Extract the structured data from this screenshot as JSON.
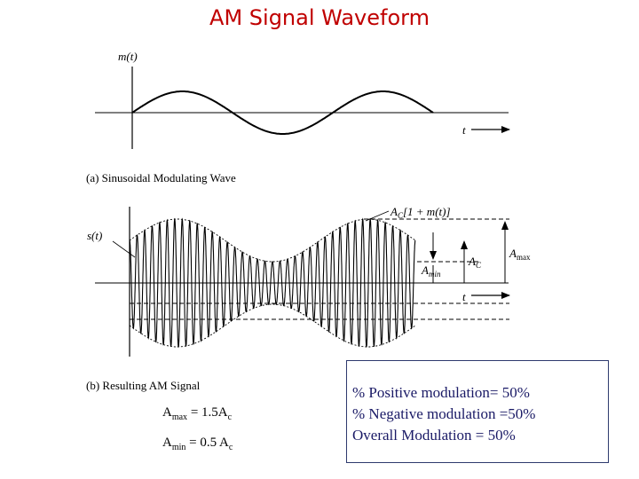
{
  "title": "AM Signal Waveform",
  "panel_a": {
    "ylabel": "m(t)",
    "xlabel": "t",
    "caption": "(a) Sinusoidal Modulating Wave"
  },
  "panel_b": {
    "ylabel": "s(t)",
    "xlabel": "t",
    "caption": "(b) Resulting AM Signal",
    "envelope_label": {
      "prefix": "A",
      "sub": "C",
      "rest": "[1 + m(t)]"
    },
    "ac_label": {
      "main": "A",
      "sub": "C"
    },
    "amax_label": {
      "main": "A",
      "sub": "max"
    },
    "amin_label": {
      "main": "A",
      "sub": "min"
    }
  },
  "notes": {
    "amax": {
      "main": "A",
      "sub": "max",
      "rest": " = 1.5A",
      "sub2": "c"
    },
    "amin": {
      "main": "A",
      "sub": "min",
      "rest": " =  0.5 A",
      "sub2": "c"
    }
  },
  "info_box": {
    "lines": [
      "%  Positive modulation= 50%",
      "%  Negative modulation =50%",
      "Overall Modulation = 50%"
    ]
  },
  "chart_data": [
    {
      "type": "line",
      "title": "",
      "xlabel": "t",
      "ylabel": "m(t)",
      "series": [
        {
          "x": [
            0,
            0.25,
            0.5,
            0.75,
            1.0,
            1.25,
            1.5
          ],
          "values": [
            0,
            0.5,
            0,
            -0.5,
            0,
            0.5,
            0
          ]
        }
      ],
      "grid": false
    },
    {
      "type": "line",
      "title": "",
      "xlabel": "t",
      "ylabel": "s(t)",
      "series": [
        {
          "x": [
            0,
            0.25,
            0.5,
            0.75,
            1.0,
            1.25,
            1.5
          ],
          "values": [
            1,
            1.5,
            1,
            0.5,
            1,
            1.5,
            1
          ]
        }
      ],
      "amax": 1.5,
      "amin": 0.5,
      "ac": 1,
      "carrier_cycles": 38,
      "grid": false
    }
  ]
}
